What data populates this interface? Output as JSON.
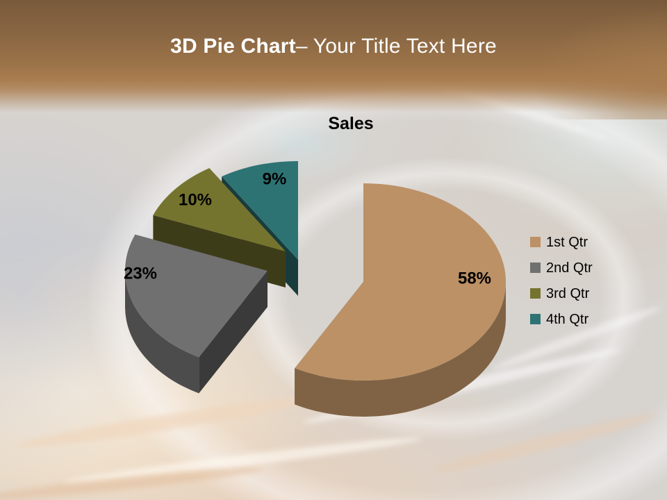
{
  "slide": {
    "header": {
      "title_bold": "3D Pie Chart",
      "title_regular": "– Your Title Text Here",
      "text_color": "#FFFFFF",
      "gradient_top": "#785A3B",
      "gradient_mid": "#A97D4F"
    },
    "background": {
      "base_color": "#D7D3CF",
      "accent_peach": "#EDD1B7",
      "accent_blue": "#BAC4D6"
    }
  },
  "chart_data": {
    "type": "pie",
    "style": "3d-exploded",
    "title": "Sales",
    "labels": [
      "1st Qtr",
      "2nd Qtr",
      "3rd Qtr",
      "4th Qtr"
    ],
    "values": [
      58,
      23,
      10,
      9
    ],
    "value_format": "percent",
    "data_label_texts": [
      "58%",
      "23%",
      "10%",
      "9%"
    ],
    "colors": [
      "#BC9166",
      "#707070",
      "#75742F",
      "#2E7374"
    ],
    "label_color": "#000000",
    "legend_position": "right"
  }
}
